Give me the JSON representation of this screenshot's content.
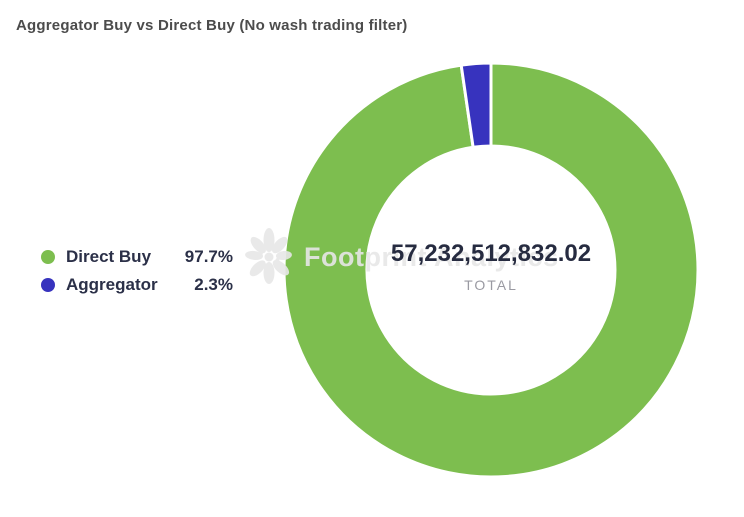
{
  "chart_data": {
    "type": "pie",
    "variant": "donut",
    "title": "Aggregator Buy vs Direct Buy (No wash trading filter)",
    "categories": [
      "Direct Buy",
      "Aggregator"
    ],
    "values": [
      97.7,
      2.3
    ],
    "value_unit": "%",
    "colors": [
      "#7dbe4f",
      "#3733be"
    ],
    "slice_border_color": "#ffffff",
    "start_at": "top",
    "direction": "clockwise",
    "inner_radius_ratio": 0.6,
    "legend": {
      "position": "left",
      "items": [
        {
          "label": "Direct Buy",
          "value": "97.7%"
        },
        {
          "label": "Aggregator",
          "value": "2.3%"
        }
      ]
    },
    "center": {
      "value": "57,232,512,832.02",
      "label": "TOTAL"
    }
  },
  "watermark": {
    "text": "Footprint Analytics"
  }
}
